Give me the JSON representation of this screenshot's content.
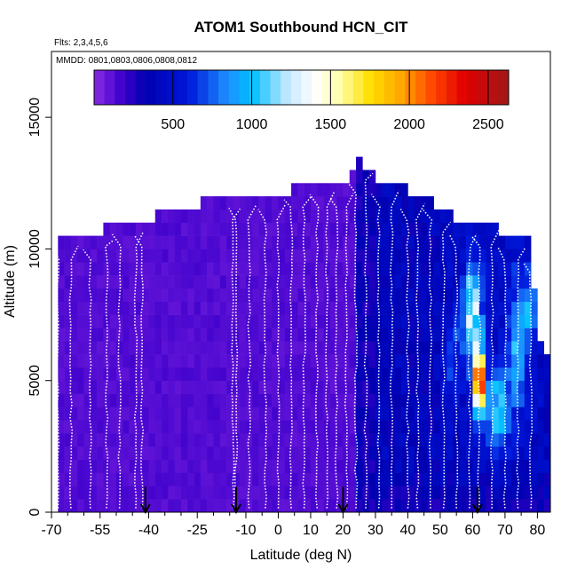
{
  "chart_data": {
    "type": "heatmap",
    "title": "ATOM1 Southbound HCN_CIT",
    "annotations": {
      "flights": "Flts: 2,3,4,5,6",
      "dates": "MMDD: 0801,0803,0806,0808,0812"
    },
    "xlabel": "Latitude (deg N)",
    "ylabel": "Altitude (m)",
    "xlim": [
      -70,
      84
    ],
    "ylim": [
      0,
      17500
    ],
    "x_ticks": [
      -70,
      -55,
      -40,
      -25,
      -10,
      0,
      10,
      20,
      30,
      40,
      50,
      60,
      70,
      80
    ],
    "x_tick_labels": [
      "-70",
      "-55",
      "-40",
      "-25",
      "-10",
      "0",
      "10",
      "20",
      "30",
      "40",
      "50",
      "60",
      "70",
      "80"
    ],
    "x_minor_ticks": [
      -65,
      -60,
      -50,
      -45,
      -35,
      -30,
      -20,
      -15,
      -5,
      5,
      15,
      25,
      35,
      45,
      55,
      65,
      75
    ],
    "y_ticks": [
      0,
      5000,
      10000,
      15000
    ],
    "y_tick_labels": [
      "0",
      "5000",
      "10000",
      "15000"
    ],
    "colorbar": {
      "range": [
        0,
        2630
      ],
      "ticks": [
        500,
        1000,
        1500,
        2000,
        2500
      ],
      "tick_labels": [
        "500",
        "1000",
        "1500",
        "2000",
        "2500"
      ],
      "stops": [
        {
          "v": 0,
          "c": "#8a2be2"
        },
        {
          "v": 180,
          "c": "#3d00cc"
        },
        {
          "v": 330,
          "c": "#0000b0"
        },
        {
          "v": 600,
          "c": "#0018dc"
        },
        {
          "v": 850,
          "c": "#1e90ff"
        },
        {
          "v": 1000,
          "c": "#00bfff"
        },
        {
          "v": 1230,
          "c": "#c6e8ff"
        },
        {
          "v": 1400,
          "c": "#ffffff"
        },
        {
          "v": 1550,
          "c": "#ffffb0"
        },
        {
          "v": 1750,
          "c": "#ffe000"
        },
        {
          "v": 1950,
          "c": "#ffa500"
        },
        {
          "v": 2150,
          "c": "#ff4500"
        },
        {
          "v": 2350,
          "c": "#e00000"
        },
        {
          "v": 2630,
          "c": "#a01818"
        }
      ]
    },
    "grid_bins": {
      "lat_step": 2,
      "alt_step": 500
    },
    "column_tops": [
      [
        -68,
        10500
      ],
      [
        -60,
        10500
      ],
      [
        -56,
        10500
      ],
      [
        -50,
        11000
      ],
      [
        -40,
        11000
      ],
      [
        -35,
        11500
      ],
      [
        -28,
        11500
      ],
      [
        -20,
        12000
      ],
      [
        -10,
        12000
      ],
      [
        0,
        12000
      ],
      [
        10,
        12500
      ],
      [
        20,
        12500
      ],
      [
        24,
        13000
      ],
      [
        25,
        13500
      ],
      [
        28,
        13000
      ],
      [
        30,
        12500
      ],
      [
        38,
        12500
      ],
      [
        40,
        12000
      ],
      [
        44,
        12000
      ],
      [
        50,
        11500
      ],
      [
        56,
        11000
      ],
      [
        66,
        11000
      ],
      [
        70,
        10500
      ],
      [
        76,
        10500
      ],
      [
        78,
        10000
      ],
      [
        80,
        7000
      ],
      [
        82,
        6000
      ]
    ],
    "background_levels": [
      {
        "from": -70,
        "to": 24,
        "value": 130
      },
      {
        "from": 24,
        "to": 30,
        "value": 300
      },
      {
        "from": 30,
        "to": 50,
        "value": 380
      },
      {
        "from": 50,
        "to": 84,
        "value": 420
      }
    ],
    "plumes": [
      {
        "lat": 62,
        "alt": 5000,
        "sx": 1.6,
        "sy": 1100,
        "peak": 2400
      },
      {
        "lat": 60,
        "alt": 7500,
        "sx": 3.0,
        "sy": 2000,
        "peak": 820
      },
      {
        "lat": 68,
        "alt": 4000,
        "sx": 4.0,
        "sy": 1500,
        "peak": 650
      },
      {
        "lat": 74,
        "alt": 6500,
        "sx": 3.0,
        "sy": 2500,
        "peak": 520
      },
      {
        "lat": 78,
        "alt": 8000,
        "sx": 2.0,
        "sy": 1500,
        "peak": 420
      },
      {
        "lat": 54,
        "alt": 6000,
        "sx": 2.0,
        "sy": 1500,
        "peak": 320
      }
    ],
    "profile_latitudes": [
      -68,
      -64,
      -58,
      -53,
      -49,
      -44,
      -42,
      -14,
      -13,
      -9,
      -4,
      0,
      4,
      8,
      12,
      15,
      18,
      21,
      24,
      27,
      31,
      35,
      40,
      43,
      47,
      51,
      55,
      59,
      62,
      66,
      70,
      74,
      78
    ],
    "arrows": {
      "latitudes": [
        -41,
        -13,
        20,
        61.5
      ],
      "top_altitude": 700,
      "bottom_altitude": 0
    }
  }
}
